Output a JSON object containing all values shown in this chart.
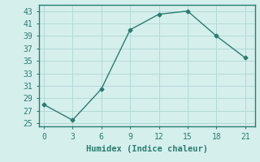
{
  "x": [
    0,
    3,
    6,
    9,
    12,
    15,
    18,
    21
  ],
  "y": [
    28,
    25.5,
    30.5,
    40,
    42.5,
    43,
    39,
    35.5
  ],
  "xlim": [
    -0.5,
    22
  ],
  "ylim": [
    24.5,
    44
  ],
  "xticks": [
    0,
    3,
    6,
    9,
    12,
    15,
    18,
    21
  ],
  "yticks": [
    25,
    27,
    29,
    31,
    33,
    35,
    37,
    39,
    41,
    43
  ],
  "xlabel": "Humidex (Indice chaleur)",
  "line_color": "#2a7d6e",
  "marker": "D",
  "marker_size": 2.5,
  "bg_color": "#d5efed",
  "grid_color": "#b5d9d6",
  "spine_color": "#2a7d6e",
  "label_fontsize": 7.5,
  "tick_fontsize": 7,
  "font_family": "monospace"
}
